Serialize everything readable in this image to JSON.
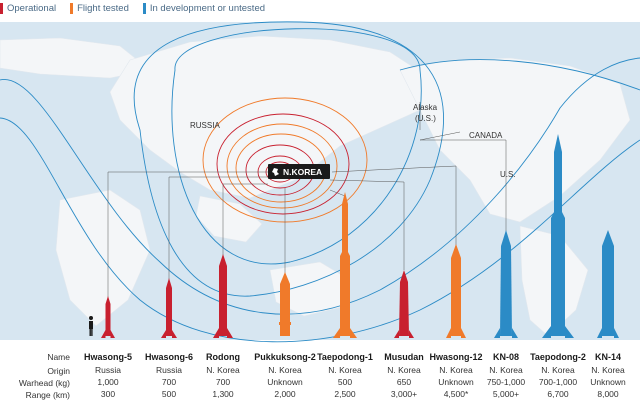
{
  "legend": [
    {
      "label": "Operational",
      "color": "#c8202f"
    },
    {
      "label": "Flight tested",
      "color": "#f07a2a"
    },
    {
      "label": "In development or untested",
      "color": "#2b8bc6"
    }
  ],
  "map_labels": {
    "russia": "RUSSIA",
    "alaska": "Alaska",
    "alaska_sub": "(U.S.)",
    "canada": "CANADA",
    "us": "U.S.",
    "nk": "N.KOREA"
  },
  "table_headers": {
    "name": "Name",
    "origin": "Origin",
    "warhead": "Warhead (kg)",
    "range": "Range (km)"
  },
  "missiles": [
    {
      "name": "Hwasong-5",
      "origin": "Russia",
      "warhead": "1,000",
      "range": "300",
      "status": "operational"
    },
    {
      "name": "Hwasong-6",
      "origin": "Russia",
      "warhead": "700",
      "range": "500",
      "status": "operational"
    },
    {
      "name": "Rodong",
      "origin": "N. Korea",
      "warhead": "700",
      "range": "1,300",
      "status": "operational"
    },
    {
      "name": "Pukkuksong-2",
      "origin": "N. Korea",
      "warhead": "Unknown",
      "range": "2,000",
      "status": "flight-tested"
    },
    {
      "name": "Taepodong-1",
      "origin": "N. Korea",
      "warhead": "500",
      "range": "2,500",
      "status": "flight-tested"
    },
    {
      "name": "Musudan",
      "origin": "N. Korea",
      "warhead": "650",
      "range": "3,000+",
      "status": "operational"
    },
    {
      "name": "Hwasong-12",
      "origin": "N. Korea",
      "warhead": "Unknown",
      "range": "4,500*",
      "status": "flight-tested"
    },
    {
      "name": "KN-08",
      "origin": "N. Korea",
      "warhead": "750-1,000",
      "range": "5,000+",
      "status": "development"
    },
    {
      "name": "Taepodong-2",
      "origin": "N. Korea",
      "warhead": "700-1,000",
      "range": "6,700",
      "status": "development"
    },
    {
      "name": "KN-14",
      "origin": "N. Korea",
      "warhead": "Unknown",
      "range": "8,000",
      "status": "development"
    }
  ]
}
